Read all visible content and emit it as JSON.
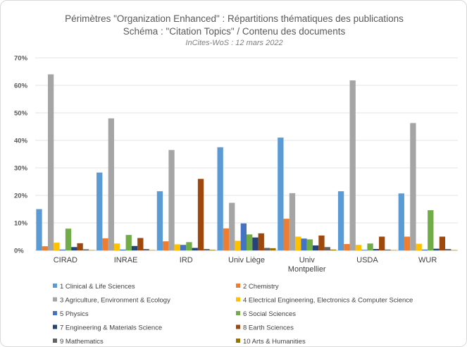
{
  "chart_data": {
    "type": "bar",
    "title": "Périmètres \"Organization Enhanced\" : Répartitions thématiques des publications",
    "subtitle": "Schéma : \"Citation Topics\" / Contenu des documents",
    "source_note": "InCites-WoS : 12 mars 2022",
    "ylim": [
      0,
      70
    ],
    "y_ticks": [
      "0%",
      "10%",
      "20%",
      "30%",
      "40%",
      "50%",
      "60%",
      "70%"
    ],
    "grid": "horizontal",
    "legend_position": "bottom",
    "categories": [
      "CIRAD",
      "INRAE",
      "IRD",
      "Univ Liège",
      "Univ Montpellier",
      "USDA",
      "WUR"
    ],
    "series": [
      {
        "name": "1 Clinical & Life Sciences",
        "color": "#5b9bd5",
        "values": [
          15,
          28.3,
          21.5,
          37.5,
          41,
          21.5,
          20.7
        ]
      },
      {
        "name": "2 Chemistry",
        "color": "#ed7d31",
        "values": [
          1.5,
          4.4,
          3.3,
          8,
          11.5,
          2.3,
          5
        ]
      },
      {
        "name": "3 Agriculture, Environment & Ecology",
        "color": "#a5a5a5",
        "values": [
          64,
          48,
          36.5,
          17.3,
          20.8,
          61.8,
          46.3
        ]
      },
      {
        "name": "4 Electrical Engineering, Electronics & Computer Science",
        "color": "#ffc000",
        "values": [
          2.8,
          2.5,
          2.2,
          3.5,
          5,
          2,
          2.4
        ]
      },
      {
        "name": "5 Physics",
        "color": "#4472c4",
        "values": [
          0.3,
          0.3,
          2,
          9.8,
          4.3,
          0.2,
          0.3
        ]
      },
      {
        "name": "6 Social Sciences",
        "color": "#70ad47",
        "values": [
          7.9,
          5.6,
          3,
          5.8,
          4,
          2.5,
          14.6
        ]
      },
      {
        "name": "7 Engineering & Materials Science",
        "color": "#264478",
        "values": [
          1.2,
          1.6,
          0.9,
          4.7,
          1.8,
          0.5,
          0.6
        ]
      },
      {
        "name": "8 Earth Sciences",
        "color": "#9e480e",
        "values": [
          2.6,
          4.5,
          26,
          6.2,
          5.4,
          5,
          5
        ]
      },
      {
        "name": "9 Mathematics",
        "color": "#636363",
        "values": [
          0.4,
          0.5,
          0.5,
          0.9,
          1.2,
          0.3,
          0.5
        ]
      },
      {
        "name": "10 Arts & Humanities",
        "color": "#997300",
        "values": [
          0.1,
          0.1,
          0.2,
          0.8,
          0.3,
          0.1,
          0.1
        ]
      }
    ]
  }
}
